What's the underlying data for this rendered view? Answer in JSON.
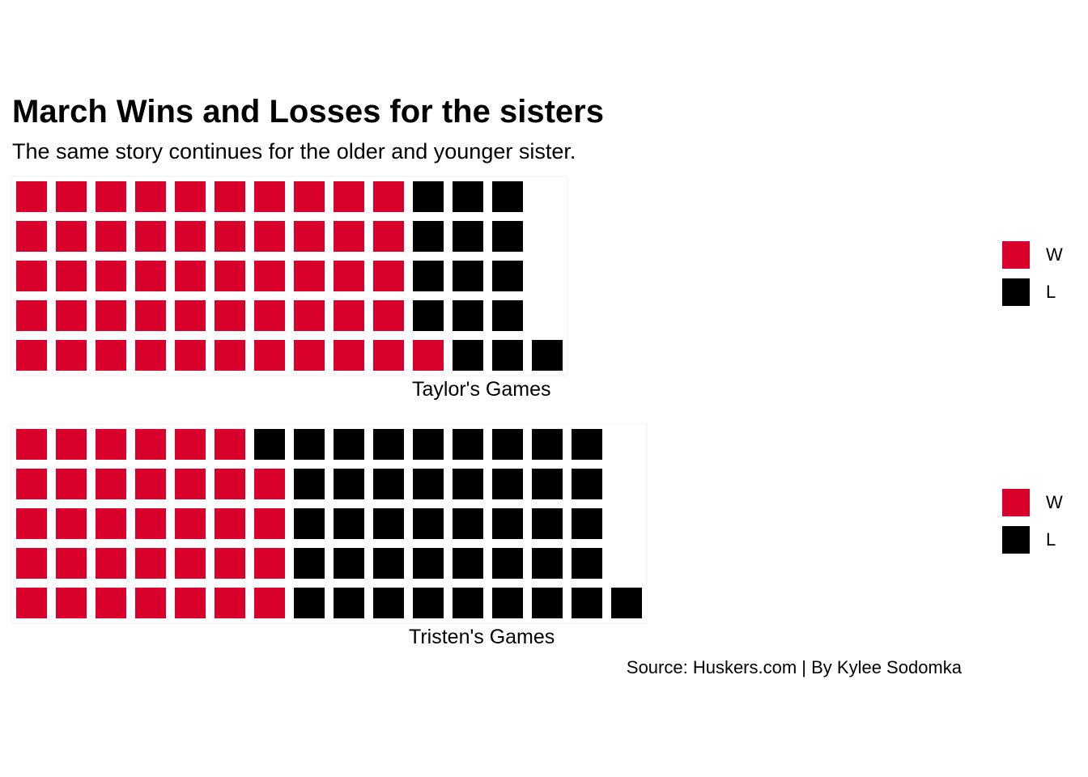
{
  "title": "March Wins and Losses for the sisters",
  "subtitle": "The same story continues for the older and younger sister.",
  "caption": "Source: Huskers.com | By Kylee Sodomka",
  "colors": {
    "win": "#D9002B",
    "loss": "#000000"
  },
  "chart_data": [
    {
      "type": "waffle",
      "label": "Taylor's Games",
      "categories": [
        "W",
        "L"
      ],
      "values": [
        51,
        15
      ],
      "rows": 5,
      "fill_order": "column-wise from bottom-left",
      "legend": [
        {
          "key": "W",
          "label": "W"
        },
        {
          "key": "L",
          "label": "L"
        }
      ]
    },
    {
      "type": "waffle",
      "label": "Tristen's Games",
      "categories": [
        "W",
        "L"
      ],
      "values": [
        34,
        42
      ],
      "rows": 5,
      "fill_order": "column-wise from bottom-left",
      "legend": [
        {
          "key": "W",
          "label": "W"
        },
        {
          "key": "L",
          "label": "L"
        }
      ]
    }
  ]
}
